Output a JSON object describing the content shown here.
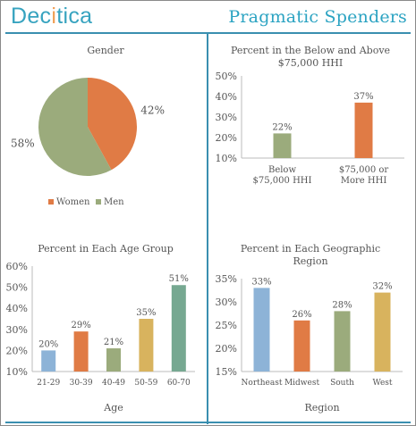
{
  "header": {
    "brand_a": "Dec",
    "brand_i": "i",
    "brand_b": "tica",
    "title": "Pragmatic Spenders"
  },
  "colors": {
    "teal": "#2ba3c2",
    "orange": "#e07b45",
    "sage": "#9bab7c",
    "blue": "#8db3d7",
    "gold": "#d8b35e",
    "green": "#76a891",
    "line": "#3a8fb0"
  },
  "chart_data": [
    {
      "type": "pie",
      "title": "Gender",
      "categories": [
        "Women",
        "Men"
      ],
      "values": [
        42,
        58
      ],
      "value_labels": [
        "42%",
        "58%"
      ],
      "colors": [
        "#e07b45",
        "#9bab7c"
      ],
      "legend": "bottom"
    },
    {
      "type": "bar",
      "title": "Percent in the Below and Above $75,000 HHI",
      "title_lines": [
        "Percent in the Below and Above",
        "$75,000 HHI"
      ],
      "categories": [
        "Below $75,000 HHI",
        "$75,000 or More HHI"
      ],
      "category_lines": [
        [
          "Below",
          "$75,000 HHI"
        ],
        [
          "$75,000 or",
          "More HHI"
        ]
      ],
      "values": [
        22,
        37
      ],
      "value_labels": [
        "22%",
        "37%"
      ],
      "colors": [
        "#9bab7c",
        "#e07b45"
      ],
      "ylim": [
        10,
        50
      ],
      "yticks": [
        "10%",
        "20%",
        "30%",
        "40%",
        "50%"
      ]
    },
    {
      "type": "bar",
      "title": "Percent in Each Age Group",
      "xlabel": "Age",
      "categories": [
        "21-29",
        "30-39",
        "40-49",
        "50-59",
        "60-70"
      ],
      "values": [
        20,
        29,
        21,
        35,
        51
      ],
      "value_labels": [
        "20%",
        "29%",
        "21%",
        "35%",
        "51%"
      ],
      "colors": [
        "#8db3d7",
        "#e07b45",
        "#9bab7c",
        "#d8b35e",
        "#76a891"
      ],
      "ylim": [
        10,
        60
      ],
      "yticks": [
        "10%",
        "20%",
        "30%",
        "40%",
        "50%",
        "60%"
      ]
    },
    {
      "type": "bar",
      "title": "Percent in Each Geographic Region",
      "title_lines": [
        "Percent in Each Geographic",
        "Region"
      ],
      "xlabel": "Region",
      "categories": [
        "Northeast",
        "Midwest",
        "South",
        "West"
      ],
      "values": [
        33,
        26,
        28,
        32
      ],
      "value_labels": [
        "33%",
        "26%",
        "28%",
        "32%"
      ],
      "colors": [
        "#8db3d7",
        "#e07b45",
        "#9bab7c",
        "#d8b35e"
      ],
      "ylim": [
        15,
        35
      ],
      "yticks": [
        "15%",
        "20%",
        "25%",
        "30%",
        "35%"
      ]
    }
  ]
}
